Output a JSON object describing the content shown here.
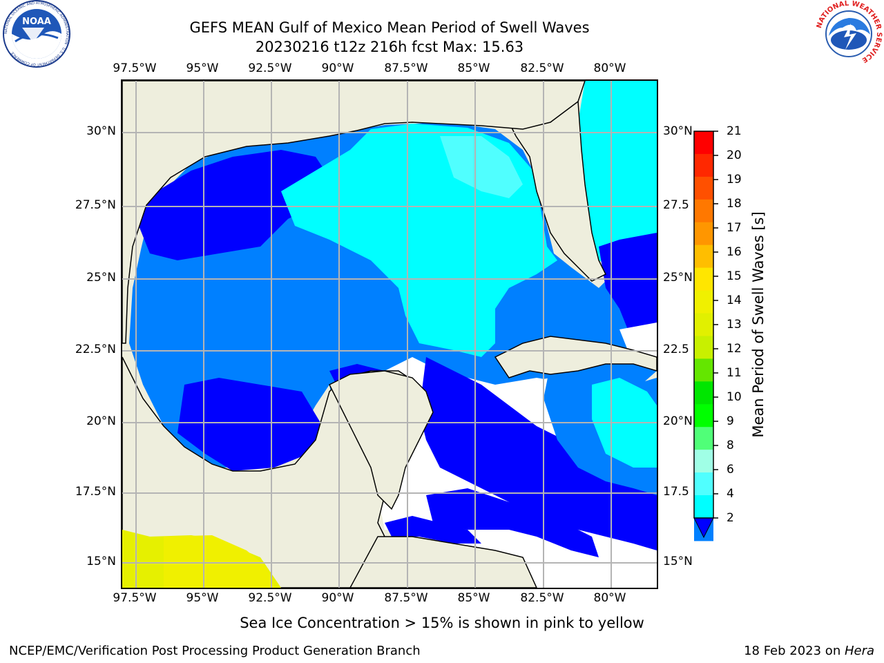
{
  "header": {
    "title_line1": "GEFS MEAN Gulf of Mexico Mean Period of Swell Waves",
    "title_line2": "20230216 t12z 216h fcst   Max: 15.63"
  },
  "logos": {
    "left": {
      "name": "noaa-logo",
      "text": "NOAA",
      "ring_text": "NATIONAL OCEANIC AND ATMOSPHERIC ADMINISTRATION · U.S. DEPARTMENT OF COMMERCE"
    },
    "right": {
      "name": "nws-logo",
      "ring_text": "NATIONAL WEATHER SERVICE"
    }
  },
  "axes": {
    "lon_labels": [
      "97.5°W",
      "95°W",
      "92.5°W",
      "90°W",
      "87.5°W",
      "85°W",
      "82.5°W",
      "80°W"
    ],
    "lat_labels_left": [
      "30°N",
      "27.5°N",
      "25°N",
      "22.5°N",
      "20°N",
      "17.5°N",
      "15°N"
    ],
    "lat_labels_right": [
      "30°N",
      "27.5",
      "25°N",
      "22.5",
      "20°N",
      "17.5",
      "15°N"
    ],
    "lon_range": [
      -98,
      -78.2
    ],
    "lat_range": [
      14,
      31.6
    ]
  },
  "colorbar": {
    "title": "Mean Period of Swell Waves [s]",
    "labels": [
      "21",
      "20",
      "19",
      "18",
      "17",
      "16",
      "15",
      "14",
      "13",
      "12",
      "11",
      "10",
      "9",
      "8",
      "6",
      "4",
      "2"
    ],
    "colors": [
      "#ff0000",
      "#ff2800",
      "#ff5000",
      "#ff7800",
      "#ff9600",
      "#ffbe00",
      "#ffe600",
      "#f0f000",
      "#e1f000",
      "#c8f000",
      "#64e600",
      "#00e600",
      "#00ff00",
      "#50ff78",
      "#a0ffe6",
      "#50ffff",
      "#00ffff",
      "#0080ff",
      "#0000ff"
    ]
  },
  "map_colors": {
    "land": "#eeeedd",
    "ocean_deep": "#0000ff",
    "ocean_mid": "#0080ff",
    "ocean_cyan": "#00ffff",
    "ocean_lightcyan": "#50ffff",
    "nodata": "#ffffff",
    "ice": "#e6f000",
    "ice2": "#f0f000",
    "grid": "#b4b4b4"
  },
  "footer": {
    "caption": "Sea Ice Concentration > 15% is shown in pink to yellow",
    "left": "NCEP/EMC/Verification Post Processing Product Generation Branch",
    "right_prefix": "18 Feb 2023 on ",
    "right_host": "Hera"
  }
}
